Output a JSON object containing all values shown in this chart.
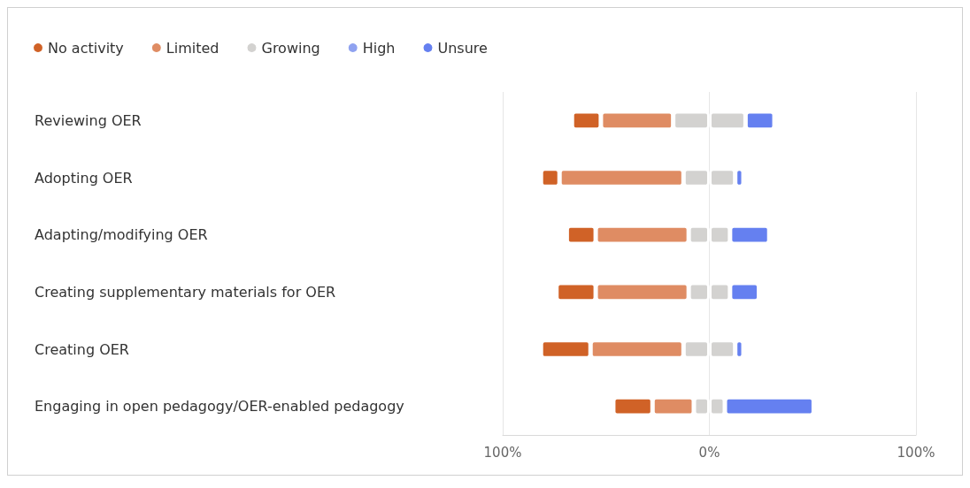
{
  "chart_data": {
    "type": "bar",
    "orientation": "horizontal",
    "stacked": true,
    "categories": [
      "Reviewing OER",
      "Adopting OER",
      "Adapting/modifying OER",
      "Creating supplementary materials for OER",
      "Creating OER",
      "Engaging in open pedagogy/OER-enabled pedagogy"
    ],
    "series": [
      {
        "name": "Growing",
        "color": "#d3d2d0",
        "values": [
          -17.5,
          -12.5,
          -10,
          -10,
          -12.5,
          -7.5
        ]
      },
      {
        "color": "#d3d2d0",
        "values": [
          17.5,
          12.5,
          10,
          10,
          12.5,
          7.5
        ]
      },
      {
        "name": "Limited",
        "color": "#df8c63",
        "values": [
          -35,
          -60,
          -45,
          -45,
          -45,
          -20
        ]
      },
      {
        "name": "No activity",
        "color": "#d06227",
        "values": [
          -14,
          -9,
          -14,
          -19,
          -24,
          -19
        ]
      },
      {
        "name": "High",
        "color": "#8fa2f0",
        "values": [
          0,
          0,
          0,
          0,
          0,
          0
        ]
      },
      {
        "name": "Unsure",
        "color": "#6580f0",
        "values": [
          14,
          4,
          19,
          14,
          4,
          43
        ]
      }
    ],
    "xlim": [
      -100,
      100
    ],
    "xticks": [
      {
        "value": -100,
        "label": "100%"
      },
      {
        "value": 0,
        "label": "0%"
      },
      {
        "value": 100,
        "label": "100%"
      }
    ],
    "grid": "x",
    "legend": "top left"
  }
}
